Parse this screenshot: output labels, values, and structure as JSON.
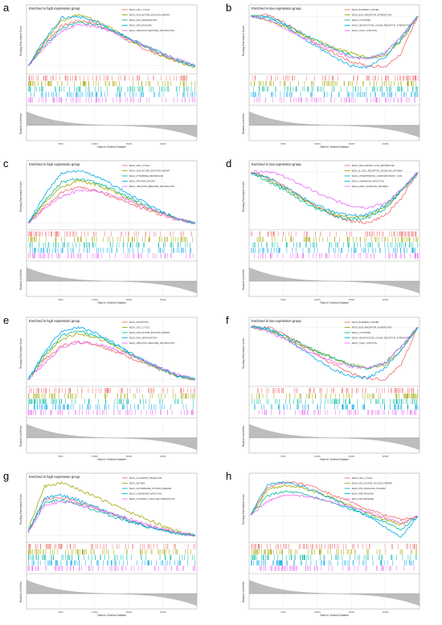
{
  "colors": [
    "#f06a6a",
    "#a3a500",
    "#00b8a0",
    "#00a6e8",
    "#e76bf3"
  ],
  "chart_data": [
    {
      "type": "line",
      "letter": "a",
      "title": "Enriched in high expression group",
      "ylabel": "Running Enrichment Score",
      "ylabel2": "Ranked List Metric",
      "xlabel": "Rank in Ordered Dataset",
      "xticks": [
        "5000",
        "10000",
        "15000",
        "20000"
      ],
      "series": [
        {
          "name": "KEGG_CELL_CYCLE",
          "values": [
            0,
            0.28,
            0.48,
            0.55,
            0.52,
            0.42,
            0.3,
            0.2,
            0.12,
            0.05,
            0
          ]
        },
        {
          "name": "KEGG_NUCLEOTIDE_EXCISION_REPAIR",
          "values": [
            0,
            0.3,
            0.55,
            0.62,
            0.55,
            0.45,
            0.32,
            0.22,
            0.12,
            0.04,
            -0.02
          ]
        },
        {
          "name": "KEGG_RNA_DEGRADATION",
          "values": [
            0,
            0.25,
            0.45,
            0.52,
            0.5,
            0.43,
            0.34,
            0.24,
            0.15,
            0.07,
            0
          ]
        },
        {
          "name": "KEGG_SPLICEOSOME",
          "values": [
            0,
            0.32,
            0.58,
            0.6,
            0.54,
            0.44,
            0.33,
            0.23,
            0.14,
            0.05,
            0
          ]
        },
        {
          "name": "KEGG_UBIQUITIN_MEDIATED_PROTEOLYSIS",
          "values": [
            0,
            0.22,
            0.42,
            0.5,
            0.48,
            0.42,
            0.33,
            0.24,
            0.15,
            0.07,
            0
          ]
        }
      ]
    },
    {
      "type": "line",
      "letter": "b",
      "title": "Enriched in low expression group",
      "ylabel": "Running Enrichment Score",
      "ylabel2": "Ranked List Metric",
      "xlabel": "Rank in Ordered Dataset",
      "xticks": [
        "5000",
        "10000",
        "15000",
        "20000"
      ],
      "series": [
        {
          "name": "KEGG_BLADDER_CANCER",
          "values": [
            0,
            0.02,
            -0.08,
            -0.2,
            -0.35,
            -0.45,
            -0.55,
            -0.6,
            -0.62,
            -0.45,
            0
          ]
        },
        {
          "name": "KEGG_ECM_RECEPTOR_INTERACTION",
          "values": [
            0,
            -0.05,
            -0.12,
            -0.22,
            -0.3,
            -0.38,
            -0.45,
            -0.5,
            -0.48,
            -0.3,
            0
          ]
        },
        {
          "name": "KEGG_LYSOSOME",
          "values": [
            0,
            0,
            -0.1,
            -0.2,
            -0.3,
            -0.4,
            -0.48,
            -0.52,
            -0.45,
            -0.25,
            0
          ]
        },
        {
          "name": "KEGG_NEUROACTIVE_LIGAND_RECEPTOR_INTERACTION",
          "values": [
            0,
            -0.02,
            -0.1,
            -0.25,
            -0.38,
            -0.5,
            -0.6,
            -0.62,
            -0.5,
            -0.28,
            0
          ]
        },
        {
          "name": "KEGG_TIGHT_JUNCTION",
          "values": [
            0,
            -0.04,
            -0.14,
            -0.25,
            -0.33,
            -0.42,
            -0.5,
            -0.52,
            -0.45,
            -0.25,
            0
          ]
        }
      ]
    },
    {
      "type": "line",
      "letter": "c",
      "title": "Enriched in high expression group",
      "ylabel": "Running Enrichment Score",
      "ylabel2": "Ranked List Metric",
      "xlabel": "Rank in Ordered Dataset",
      "xticks": [
        "5000",
        "10000",
        "15000",
        "20000"
      ],
      "series": [
        {
          "name": "KEGG_CELL_CYCLE",
          "values": [
            0,
            0.2,
            0.38,
            0.45,
            0.4,
            0.33,
            0.25,
            0.17,
            0.1,
            0.04,
            0
          ]
        },
        {
          "name": "KEGG_NUCLEOTIDE_EXCISION_REPAIR",
          "values": [
            0,
            0.25,
            0.45,
            0.52,
            0.48,
            0.4,
            0.3,
            0.2,
            0.12,
            0.05,
            0
          ]
        },
        {
          "name": "KEGG_PYRIMIDINE_METABOLISM",
          "values": [
            0,
            0.28,
            0.5,
            0.55,
            0.5,
            0.42,
            0.32,
            0.22,
            0.13,
            0.05,
            0
          ]
        },
        {
          "name": "KEGG_PROTEIN_EXPORT",
          "values": [
            0,
            0.35,
            0.62,
            0.65,
            0.58,
            0.48,
            0.36,
            0.25,
            0.14,
            0.05,
            0
          ]
        },
        {
          "name": "KEGG_UBIQUITIN_MEDIATED_PROTEOLYSIS",
          "values": [
            0,
            0.18,
            0.33,
            0.4,
            0.4,
            0.35,
            0.28,
            0.2,
            0.12,
            0.05,
            0
          ]
        }
      ]
    },
    {
      "type": "line",
      "letter": "d",
      "title": "Enriched in low expression group",
      "ylabel": "Running Enrichment Score",
      "ylabel2": "Ranked List Metric",
      "xlabel": "Rank in Ordered Dataset",
      "xticks": [
        "5000",
        "10000",
        "15000",
        "20000"
      ],
      "series": [
        {
          "name": "KEGG_ARACHIDONIC_ACID_METABOLISM",
          "values": [
            0,
            -0.05,
            -0.15,
            -0.28,
            -0.4,
            -0.5,
            -0.56,
            -0.58,
            -0.5,
            -0.3,
            0
          ]
        },
        {
          "name": "KEGG_B_CELL_RECEPTOR_SIGNALING_PATHWAY",
          "values": [
            0,
            -0.08,
            -0.18,
            -0.3,
            -0.4,
            -0.48,
            -0.52,
            -0.5,
            -0.4,
            -0.22,
            0
          ]
        },
        {
          "name": "KEGG_HYPERTROPHIC_CARDIOMYOPATHY_HCM",
          "values": [
            0,
            -0.1,
            -0.2,
            -0.32,
            -0.42,
            -0.5,
            -0.54,
            -0.52,
            -0.42,
            -0.22,
            0
          ]
        },
        {
          "name": "KEGG_LEISHMANIA_INFECTION",
          "values": [
            0,
            -0.06,
            -0.16,
            -0.28,
            -0.38,
            -0.46,
            -0.5,
            -0.48,
            -0.38,
            -0.2,
            0
          ]
        },
        {
          "name": "KEGG_MAPK_SIGNALING_PATHWAY",
          "values": [
            0,
            0.02,
            -0.05,
            -0.14,
            -0.24,
            -0.32,
            -0.38,
            -0.4,
            -0.36,
            -0.2,
            0
          ]
        }
      ]
    },
    {
      "type": "line",
      "letter": "e",
      "title": "Enriched in high expression group",
      "ylabel": "Running Enrichment Score",
      "ylabel2": "Ranked List Metric",
      "xlabel": "Rank in Ordered Dataset",
      "xticks": [
        "5000",
        "10000",
        "15000",
        "20000"
      ],
      "series": [
        {
          "name": "KEGG_APOPTOSIS",
          "values": [
            0,
            0.24,
            0.4,
            0.45,
            0.42,
            0.35,
            0.27,
            0.19,
            0.11,
            0.04,
            0
          ]
        },
        {
          "name": "KEGG_CELL_CYCLE",
          "values": [
            0,
            0.28,
            0.48,
            0.55,
            0.5,
            0.42,
            0.31,
            0.21,
            0.12,
            0.04,
            0
          ]
        },
        {
          "name": "KEGG_NUCLEOTIDE_EXCISION_REPAIR",
          "values": [
            0,
            0.3,
            0.52,
            0.58,
            0.52,
            0.43,
            0.32,
            0.22,
            0.12,
            0.04,
            0
          ]
        },
        {
          "name": "KEGG_RNA_DEGRADATION",
          "values": [
            0,
            0.33,
            0.58,
            0.62,
            0.55,
            0.45,
            0.33,
            0.22,
            0.13,
            0.05,
            0
          ]
        },
        {
          "name": "KEGG_UBIQUITIN_MEDIATED_PROTEOLYSIS",
          "values": [
            0,
            0.2,
            0.38,
            0.44,
            0.43,
            0.37,
            0.3,
            0.22,
            0.13,
            0.06,
            0
          ]
        }
      ]
    },
    {
      "type": "line",
      "letter": "f",
      "title": "Enriched in low expression group",
      "ylabel": "Running Enrichment Score",
      "ylabel2": "Ranked List Metric",
      "xlabel": "Rank in Ordered Dataset",
      "xticks": [
        "5000",
        "10000",
        "15000",
        "20000"
      ],
      "series": [
        {
          "name": "KEGG_BLADDER_CANCER",
          "values": [
            0,
            0,
            -0.08,
            -0.2,
            -0.34,
            -0.46,
            -0.56,
            -0.62,
            -0.64,
            -0.45,
            0
          ]
        },
        {
          "name": "KEGG_ECM_RECEPTOR_INTERACTION",
          "values": [
            0,
            -0.04,
            -0.12,
            -0.22,
            -0.3,
            -0.38,
            -0.45,
            -0.5,
            -0.46,
            -0.28,
            0
          ]
        },
        {
          "name": "KEGG_LYSOSOME",
          "values": [
            0,
            -0.02,
            -0.1,
            -0.2,
            -0.3,
            -0.38,
            -0.46,
            -0.5,
            -0.44,
            -0.24,
            0
          ]
        },
        {
          "name": "KEGG_NEUROACTIVE_LIGAND_RECEPTOR_INTERACTION",
          "values": [
            0,
            -0.02,
            -0.12,
            -0.26,
            -0.4,
            -0.52,
            -0.6,
            -0.62,
            -0.5,
            -0.28,
            0
          ]
        },
        {
          "name": "KEGG_TIGHT_JUNCTION",
          "values": [
            0,
            -0.05,
            -0.14,
            -0.25,
            -0.34,
            -0.42,
            -0.48,
            -0.5,
            -0.44,
            -0.24,
            0
          ]
        }
      ]
    },
    {
      "type": "line",
      "letter": "g",
      "title": "Enriched in high expression group",
      "ylabel": "Running Enrichment Score",
      "ylabel2": "Ranked List Metric",
      "xlabel": "Rank in Ordered Dataset",
      "xticks": [
        "5000",
        "10000",
        "15000",
        "20000"
      ],
      "series": [
        {
          "name": "KEGG_ALLOGRAFT_REJECTION",
          "values": [
            0.05,
            0.42,
            0.45,
            0.4,
            0.33,
            0.25,
            0.18,
            0.12,
            0.07,
            0.03,
            0
          ]
        },
        {
          "name": "KEGG_ASTHMA",
          "values": [
            0.08,
            0.58,
            0.62,
            0.55,
            0.46,
            0.37,
            0.28,
            0.2,
            0.12,
            0.05,
            0
          ]
        },
        {
          "name": "KEGG_AUTOIMMUNE_THYROID_DISEASE",
          "values": [
            0.04,
            0.4,
            0.42,
            0.37,
            0.3,
            0.23,
            0.17,
            0.11,
            0.06,
            0.02,
            0
          ]
        },
        {
          "name": "KEGG_LEISHMANIA_INFECTION",
          "values": [
            0.05,
            0.45,
            0.48,
            0.42,
            0.34,
            0.26,
            0.18,
            0.11,
            0.06,
            0.02,
            0
          ]
        },
        {
          "name": "KEGG_SYSTEMIC_LUPUS_ERYTHEMATOSUS",
          "values": [
            0.03,
            0.36,
            0.4,
            0.37,
            0.32,
            0.26,
            0.2,
            0.14,
            0.08,
            0.03,
            0
          ]
        }
      ]
    },
    {
      "type": "line",
      "letter": "h",
      "title": "",
      "ylabel": "Running Enrichment Score",
      "ylabel2": "Ranked List Metric",
      "xlabel": "Rank in Ordered Dataset",
      "xticks": [
        "5000",
        "10000",
        "15000",
        "20000"
      ],
      "series": [
        {
          "name": "KEGG_CELL_CYCLE",
          "values": [
            0.02,
            0.42,
            0.5,
            0.48,
            0.4,
            0.3,
            0.2,
            0.1,
            0.02,
            -0.05,
            0
          ]
        },
        {
          "name": "KEGG_NUCLEOTIDE_EXCISION_REPAIR",
          "values": [
            0.02,
            0.38,
            0.45,
            0.42,
            0.34,
            0.25,
            0.15,
            0.05,
            -0.05,
            -0.12,
            0
          ]
        },
        {
          "name": "KEGG_P53_SIGNALING_PATHWAY",
          "values": [
            0.01,
            0.3,
            0.36,
            0.33,
            0.26,
            0.18,
            0.1,
            0.02,
            -0.08,
            -0.2,
            0
          ]
        },
        {
          "name": "KEGG_PROTEASOME",
          "values": [
            0.03,
            0.45,
            0.5,
            0.44,
            0.35,
            0.24,
            0.12,
            0,
            -0.15,
            -0.3,
            0
          ]
        },
        {
          "name": "KEGG_PROTEASOME",
          "values": [
            0.01,
            0.22,
            0.3,
            0.3,
            0.26,
            0.2,
            0.13,
            0.06,
            -0.02,
            -0.1,
            0
          ]
        }
      ]
    }
  ]
}
